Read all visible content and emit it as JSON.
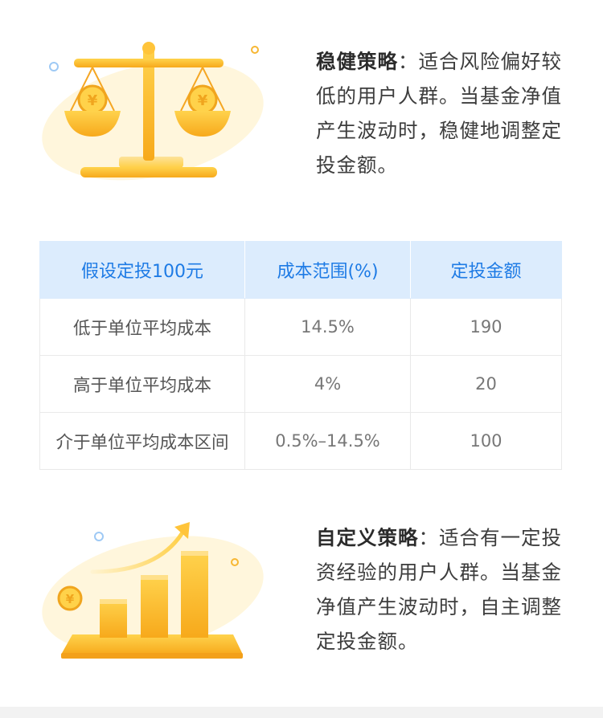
{
  "strategies": [
    {
      "title": "稳健策略",
      "separator": "：",
      "text": "适合风险偏好较低的用户人群。当基金净值产生波动时，稳健地调整定投金额。",
      "icon": "balance-scale-icon"
    },
    {
      "title": "自定义策略",
      "separator": "：",
      "text": "适合有一定投资经验的用户人群。当基金净值产生波动时，自主调整定投金额。",
      "icon": "growth-chart-icon"
    }
  ],
  "table": {
    "headers": [
      "假设定投100元",
      "成本范围(%)",
      "定投金额"
    ],
    "rows": [
      [
        "低于单位平均成本",
        "14.5%",
        "190"
      ],
      [
        "高于单位平均成本",
        "4%",
        "20"
      ],
      [
        "介于单位平均成本区间",
        "0.5%–14.5%",
        "100"
      ]
    ]
  },
  "colors": {
    "header_bg": "#dcecfd",
    "header_text": "#1e7be5",
    "gold": "#fbb623",
    "gold_light": "#fde39a"
  },
  "coin_symbol": "¥"
}
